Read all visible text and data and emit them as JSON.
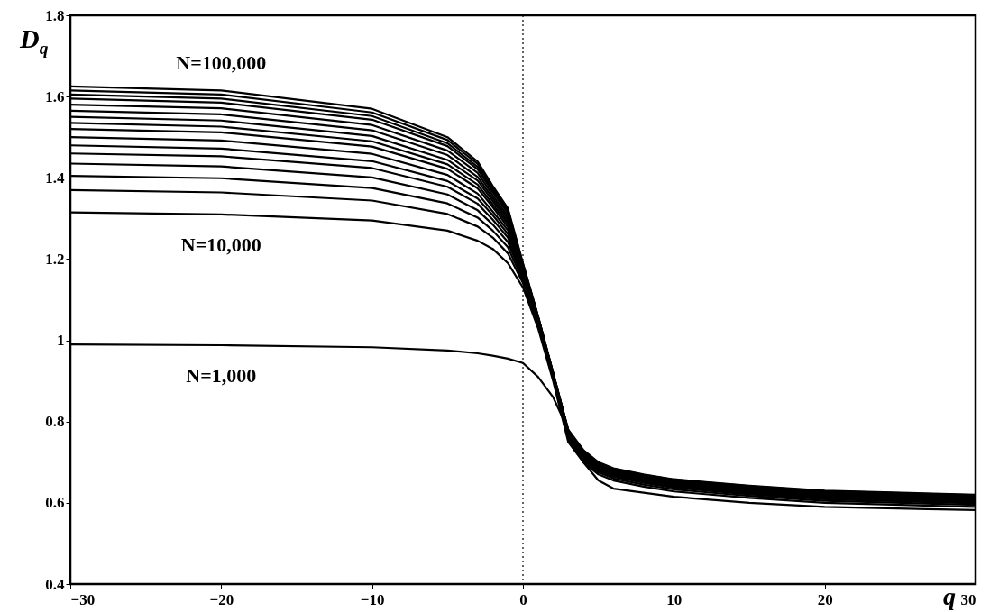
{
  "chart_data": {
    "type": "line",
    "xlabel": "q",
    "ylabel": "D$_{q}$",
    "x": [
      -30,
      -20,
      -10,
      -5,
      -3,
      -2,
      -1,
      0,
      1,
      2,
      3,
      4,
      5,
      6,
      8,
      10,
      15,
      20,
      30
    ],
    "xlim": [
      -30,
      30
    ],
    "xticks": [
      -30,
      -20,
      -10,
      0,
      10,
      20,
      30
    ],
    "ylim": [
      0.4,
      1.8
    ],
    "yticks": [
      0.4,
      0.6,
      0.8,
      1,
      1.2,
      1.4,
      1.6,
      1.8
    ],
    "grid": false,
    "marker": "none",
    "line_style": "solid",
    "ref_lines": [
      {
        "axis": "x",
        "value": 0,
        "color": "#000000",
        "line_style": "dotted"
      }
    ],
    "series": [
      {
        "name": "N=1,000",
        "color": "#000000",
        "values": [
          0.99,
          0.988,
          0.983,
          0.975,
          0.968,
          0.962,
          0.955,
          0.944,
          0.91,
          0.86,
          0.78,
          0.7,
          0.655,
          0.635,
          0.625,
          0.615,
          0.6,
          0.59,
          0.582
        ]
      },
      {
        "name": "N=10,000",
        "color": "#000000",
        "values": [
          1.315,
          1.31,
          1.295,
          1.27,
          1.245,
          1.225,
          1.19,
          1.13,
          1.03,
          0.9,
          0.75,
          0.7,
          0.67,
          0.655,
          0.64,
          0.628,
          0.612,
          0.6,
          0.59
        ]
      },
      {
        "color": "#000000",
        "values": [
          1.37,
          1.364,
          1.344,
          1.311,
          1.28,
          1.253,
          1.214,
          1.141,
          1.035,
          0.904,
          0.755,
          0.705,
          0.675,
          0.66,
          0.645,
          0.633,
          0.617,
          0.605,
          0.595
        ]
      },
      {
        "color": "#000000",
        "values": [
          1.405,
          1.399,
          1.375,
          1.337,
          1.302,
          1.27,
          1.229,
          1.147,
          1.039,
          0.906,
          0.759,
          0.709,
          0.679,
          0.664,
          0.649,
          0.637,
          0.621,
          0.609,
          0.599
        ]
      },
      {
        "color": "#000000",
        "values": [
          1.435,
          1.428,
          1.401,
          1.359,
          1.32,
          1.285,
          1.242,
          1.153,
          1.042,
          0.908,
          0.762,
          0.712,
          0.682,
          0.667,
          0.652,
          0.64,
          0.624,
          0.612,
          0.602
        ]
      },
      {
        "color": "#000000",
        "values": [
          1.46,
          1.453,
          1.424,
          1.378,
          1.336,
          1.297,
          1.253,
          1.158,
          1.044,
          0.909,
          0.764,
          0.714,
          0.684,
          0.669,
          0.654,
          0.642,
          0.626,
          0.614,
          0.604
        ]
      },
      {
        "color": "#000000",
        "values": [
          1.48,
          1.472,
          1.441,
          1.392,
          1.349,
          1.308,
          1.262,
          1.162,
          1.046,
          0.911,
          0.766,
          0.716,
          0.686,
          0.671,
          0.656,
          0.644,
          0.628,
          0.616,
          0.606
        ]
      },
      {
        "color": "#000000",
        "values": [
          1.5,
          1.492,
          1.459,
          1.407,
          1.361,
          1.317,
          1.271,
          1.166,
          1.048,
          0.912,
          0.768,
          0.718,
          0.688,
          0.673,
          0.658,
          0.646,
          0.63,
          0.618,
          0.608
        ]
      },
      {
        "color": "#000000",
        "values": [
          1.52,
          1.512,
          1.477,
          1.422,
          1.374,
          1.328,
          1.279,
          1.17,
          1.05,
          0.913,
          0.77,
          0.72,
          0.69,
          0.675,
          0.66,
          0.648,
          0.632,
          0.62,
          0.61
        ]
      },
      {
        "color": "#000000",
        "values": [
          1.535,
          1.526,
          1.49,
          1.433,
          1.383,
          1.335,
          1.286,
          1.173,
          1.051,
          0.914,
          0.771,
          0.721,
          0.691,
          0.676,
          0.661,
          0.649,
          0.633,
          0.621,
          0.611
        ]
      },
      {
        "color": "#000000",
        "values": [
          1.55,
          1.541,
          1.503,
          1.444,
          1.393,
          1.343,
          1.292,
          1.175,
          1.053,
          0.915,
          0.773,
          0.723,
          0.693,
          0.678,
          0.663,
          0.651,
          0.635,
          0.623,
          0.613
        ]
      },
      {
        "color": "#000000",
        "values": [
          1.565,
          1.556,
          1.517,
          1.456,
          1.402,
          1.35,
          1.299,
          1.178,
          1.054,
          0.916,
          0.774,
          0.724,
          0.694,
          0.679,
          0.664,
          0.652,
          0.636,
          0.624,
          0.614
        ]
      },
      {
        "color": "#000000",
        "values": [
          1.58,
          1.571,
          1.53,
          1.467,
          1.412,
          1.357,
          1.305,
          1.181,
          1.056,
          0.917,
          0.776,
          0.726,
          0.696,
          0.681,
          0.666,
          0.654,
          0.638,
          0.626,
          0.616
        ]
      },
      {
        "color": "#000000",
        "values": [
          1.595,
          1.585,
          1.543,
          1.478,
          1.421,
          1.365,
          1.312,
          1.184,
          1.057,
          0.918,
          0.777,
          0.727,
          0.697,
          0.682,
          0.667,
          0.655,
          0.639,
          0.627,
          0.617
        ]
      },
      {
        "color": "#000000",
        "values": [
          1.605,
          1.595,
          1.552,
          1.485,
          1.427,
          1.37,
          1.316,
          1.186,
          1.058,
          0.919,
          0.778,
          0.728,
          0.698,
          0.683,
          0.668,
          0.656,
          0.64,
          0.628,
          0.618
        ]
      },
      {
        "color": "#000000",
        "values": [
          1.615,
          1.605,
          1.561,
          1.493,
          1.434,
          1.375,
          1.321,
          1.188,
          1.059,
          0.919,
          0.779,
          0.729,
          0.699,
          0.684,
          0.669,
          0.657,
          0.641,
          0.629,
          0.619
        ]
      },
      {
        "name": "N=100,000",
        "color": "#000000",
        "values": [
          1.625,
          1.615,
          1.57,
          1.5,
          1.44,
          1.38,
          1.325,
          1.19,
          1.06,
          0.92,
          0.78,
          0.73,
          0.7,
          0.685,
          0.67,
          0.658,
          0.642,
          0.63,
          0.62
        ]
      }
    ]
  }
}
